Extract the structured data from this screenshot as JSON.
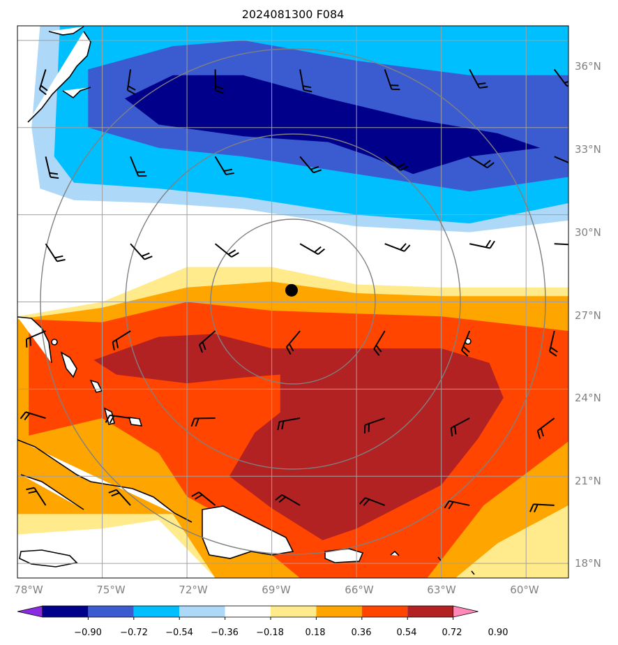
{
  "chart_data": {
    "type": "heatmap",
    "title": "2024081300 F084",
    "x_ticks": [
      "78°W",
      "75°W",
      "72°W",
      "69°W",
      "66°W",
      "63°W",
      "60°W"
    ],
    "y_ticks": [
      "36°N",
      "33°N",
      "30°N",
      "27°N",
      "24°N",
      "21°N",
      "18°N"
    ],
    "xlim": [
      -78,
      -58.5
    ],
    "ylim": [
      17.5,
      36.5
    ],
    "grid": true,
    "storm_center": {
      "lon": -68.3,
      "lat": 27.4
    },
    "colorbar": {
      "tick_labels": [
        "−0.90",
        "−0.72",
        "−0.54",
        "−0.36",
        "−0.18",
        "0.18",
        "0.36",
        "0.54",
        "0.72",
        "0.90"
      ],
      "levels": [
        -0.9,
        -0.72,
        -0.54,
        -0.36,
        -0.18,
        0.18,
        0.36,
        0.54,
        0.72,
        0.9
      ],
      "colors": [
        "#8a2be2",
        "#00008b",
        "#3a5cd0",
        "#00bfff",
        "#add8f8",
        "#ffffff",
        "#ffeb8c",
        "#ffa500",
        "#ff4500",
        "#b22222",
        "#ff89b8"
      ],
      "extend": "both"
    },
    "field_regions": [
      {
        "level": "-0.36",
        "color": "#add8f8",
        "lonlat": [
          [
            -77.2,
            36.5
          ],
          [
            -58.5,
            36.5
          ],
          [
            -58.5,
            29.8
          ],
          [
            -62,
            29.4
          ],
          [
            -66,
            29.6
          ],
          [
            -70,
            30.2
          ],
          [
            -73,
            30.4
          ],
          [
            -76,
            30.5
          ],
          [
            -77.2,
            30.9
          ],
          [
            -77.5,
            33
          ]
        ]
      },
      {
        "level": "-0.54",
        "color": "#00bfff",
        "lonlat": [
          [
            -76.5,
            36.5
          ],
          [
            -58.5,
            36.5
          ],
          [
            -58.5,
            30.4
          ],
          [
            -62,
            29.7
          ],
          [
            -66,
            30
          ],
          [
            -70,
            30.6
          ],
          [
            -73,
            30.9
          ],
          [
            -76,
            31.1
          ],
          [
            -76.7,
            32
          ]
        ]
      },
      {
        "level": "-0.72",
        "color": "#3a5cd0",
        "lonlat": [
          [
            -75.5,
            35
          ],
          [
            -72.5,
            35.8
          ],
          [
            -70,
            36
          ],
          [
            -66,
            35.3
          ],
          [
            -62,
            34.8
          ],
          [
            -58.5,
            34.8
          ],
          [
            -58.5,
            31.3
          ],
          [
            -62,
            30.8
          ],
          [
            -66,
            31.4
          ],
          [
            -70,
            32
          ],
          [
            -73,
            32.3
          ],
          [
            -75.5,
            33
          ]
        ]
      },
      {
        "level": "-0.90",
        "color": "#00008b",
        "lonlat": [
          [
            -74.2,
            34
          ],
          [
            -72.5,
            34.8
          ],
          [
            -70,
            34.8
          ],
          [
            -67,
            34
          ],
          [
            -64,
            33.3
          ],
          [
            -61,
            32.8
          ],
          [
            -59.5,
            32.3
          ],
          [
            -62,
            32
          ],
          [
            -64,
            31.4
          ],
          [
            -65.5,
            32
          ],
          [
            -67,
            32.5
          ],
          [
            -70,
            32.7
          ],
          [
            -73,
            33.1
          ]
        ]
      },
      {
        "level": "0.18",
        "color": "#ffeb8c",
        "lonlat": [
          [
            -78,
            26.5
          ],
          [
            -75,
            27
          ],
          [
            -72,
            28.2
          ],
          [
            -69,
            28.2
          ],
          [
            -66,
            27.6
          ],
          [
            -63,
            27.5
          ],
          [
            -58.5,
            27.5
          ],
          [
            -58.5,
            17.5
          ],
          [
            -71,
            17.5
          ],
          [
            -73,
            19.5
          ],
          [
            -75,
            19.2
          ],
          [
            -78,
            19
          ]
        ]
      },
      {
        "level": "0.36",
        "color": "#ffa500",
        "lonlat": [
          [
            -78,
            26.4
          ],
          [
            -75,
            26.8
          ],
          [
            -72,
            27.5
          ],
          [
            -69,
            27.7
          ],
          [
            -66,
            27.3
          ],
          [
            -63,
            27.2
          ],
          [
            -58.5,
            27.2
          ],
          [
            -58.5,
            20
          ],
          [
            -61,
            18.7
          ],
          [
            -62.5,
            17.5
          ],
          [
            -71,
            17.5
          ],
          [
            -72.5,
            19.7
          ],
          [
            -75,
            19.7
          ],
          [
            -78,
            19.7
          ]
        ]
      },
      {
        "level": "0.54",
        "color": "#ff4500",
        "lonlat": [
          [
            -77.6,
            26.4
          ],
          [
            -75,
            26.3
          ],
          [
            -72,
            27
          ],
          [
            -69,
            26.7
          ],
          [
            -66,
            26.6
          ],
          [
            -63,
            26.5
          ],
          [
            -58.5,
            26
          ],
          [
            -58.5,
            22.2
          ],
          [
            -61.5,
            20
          ],
          [
            -63.5,
            17.5
          ],
          [
            -68,
            17.5
          ],
          [
            -70.5,
            19.5
          ],
          [
            -72,
            20.3
          ],
          [
            -73,
            21.8
          ],
          [
            -75,
            23
          ],
          [
            -77.6,
            22.4
          ]
        ]
      },
      {
        "level": "0.72",
        "color": "#b22222",
        "lonlat": [
          [
            -75.3,
            25
          ],
          [
            -73,
            25.8
          ],
          [
            -71,
            25.9
          ],
          [
            -69,
            25.4
          ],
          [
            -66,
            25.4
          ],
          [
            -63,
            25.4
          ],
          [
            -61.3,
            24.9
          ],
          [
            -60.8,
            23.7
          ],
          [
            -61.7,
            22.3
          ],
          [
            -63,
            20.7
          ],
          [
            -66,
            19.2
          ],
          [
            -67.2,
            18.8
          ],
          [
            -69,
            19.9
          ],
          [
            -70.5,
            21
          ],
          [
            -69.6,
            22.5
          ],
          [
            -68.7,
            23.2
          ],
          [
            -68.7,
            24.5
          ],
          [
            -70,
            24.4
          ],
          [
            -72,
            24.2
          ],
          [
            -74.5,
            24.5
          ]
        ]
      }
    ]
  }
}
